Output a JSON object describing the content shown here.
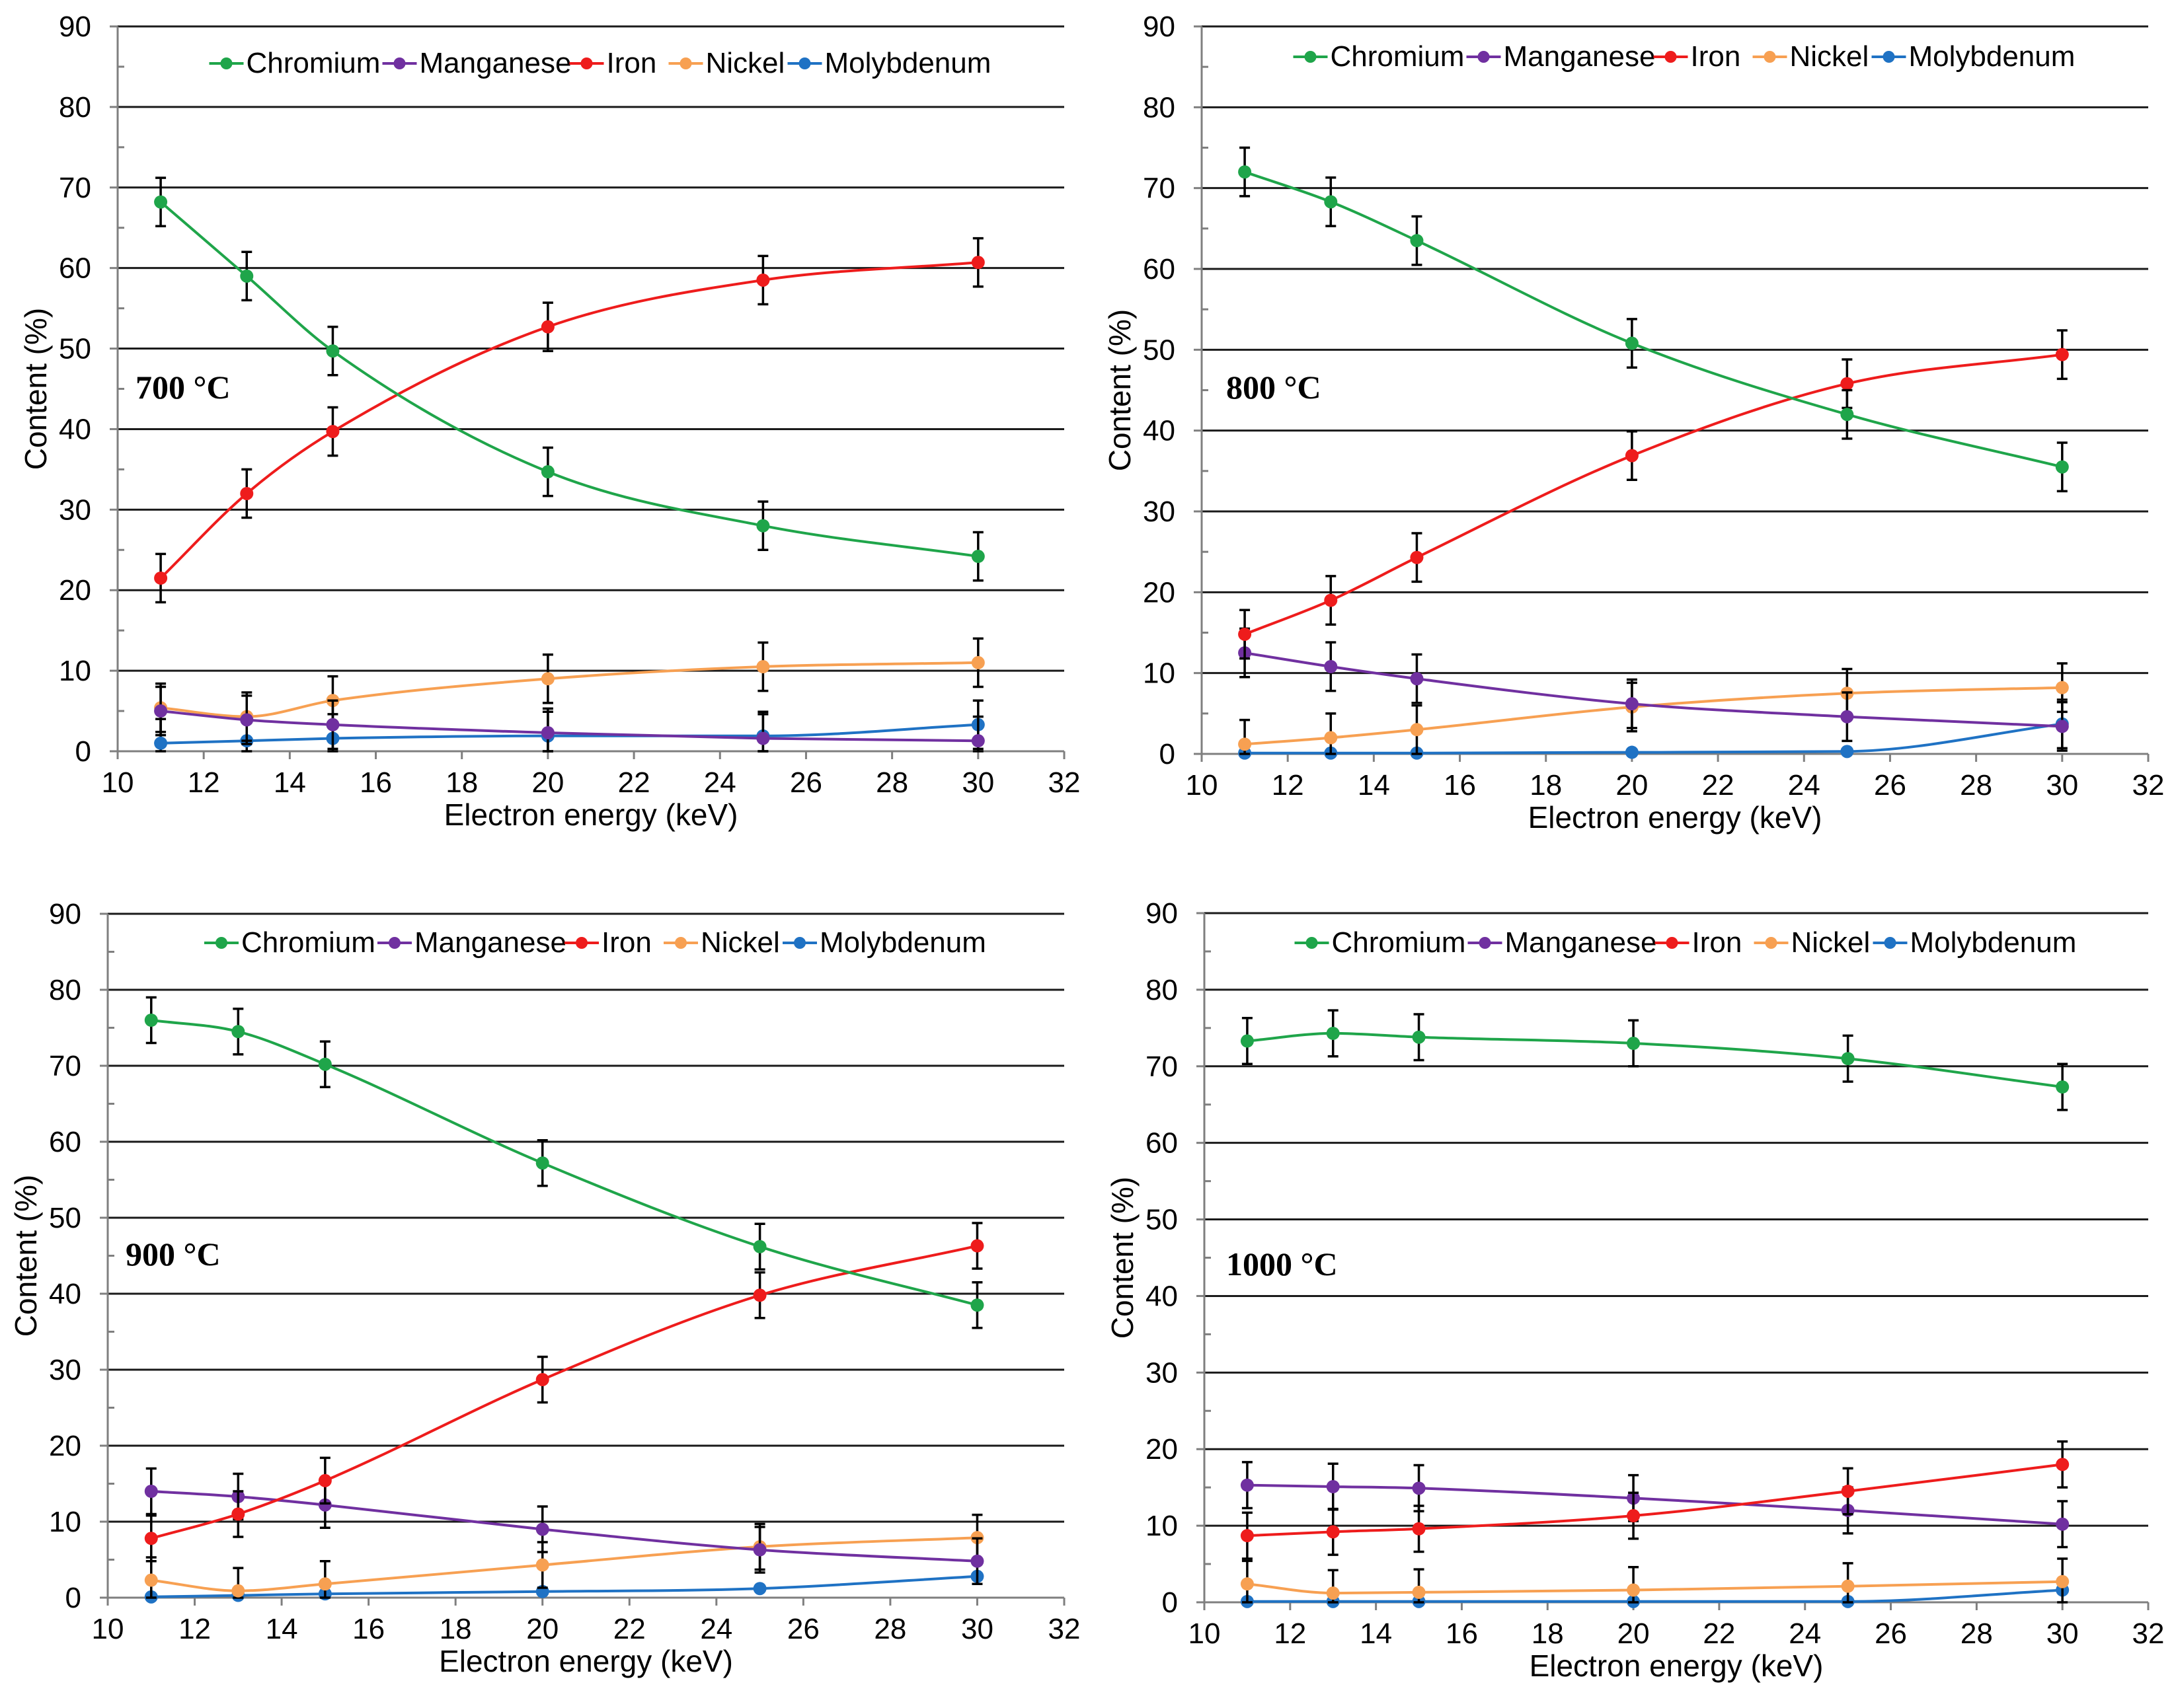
{
  "chart_data": [
    {
      "type": "line",
      "temperature_label": "700 °C",
      "xlabel": "Electron energy (keV)",
      "ylabel": "Content (%)",
      "xlim": [
        10,
        32
      ],
      "ylim": [
        0,
        90
      ],
      "x_ticks": [
        "10",
        "12",
        "14",
        "16",
        "18",
        "20",
        "22",
        "24",
        "26",
        "28",
        "30",
        "32"
      ],
      "y_ticks": [
        "0",
        "10",
        "20",
        "30",
        "40",
        "50",
        "60",
        "70",
        "80",
        "90"
      ],
      "x": [
        11,
        13,
        15,
        20,
        25,
        30
      ],
      "series": [
        {
          "name": "Chromium",
          "color": "#1fa54a",
          "values": [
            68.2,
            59.0,
            49.7,
            34.7,
            28.0,
            24.2
          ],
          "errors": [
            3,
            3,
            3,
            3,
            3,
            3
          ]
        },
        {
          "name": "Manganese",
          "color": "#7030a0",
          "values": [
            5.0,
            3.9,
            3.3,
            2.3,
            1.6,
            1.3
          ],
          "errors": [
            3,
            3,
            3,
            3,
            3,
            3
          ]
        },
        {
          "name": "Iron",
          "color": "#ee1c1c",
          "values": [
            21.5,
            32.0,
            39.7,
            52.7,
            58.5,
            60.7
          ],
          "errors": [
            3,
            3,
            3,
            3,
            3,
            3
          ]
        },
        {
          "name": "Nickel",
          "color": "#f7a052",
          "values": [
            5.4,
            4.3,
            6.3,
            9.0,
            10.5,
            11.0
          ],
          "errors": [
            3,
            3,
            3,
            3,
            3,
            3
          ]
        },
        {
          "name": "Molybdenum",
          "color": "#1f72c4",
          "values": [
            1.0,
            1.3,
            1.6,
            1.9,
            1.9,
            3.3
          ],
          "errors": [
            3,
            3,
            3,
            3,
            3,
            3
          ]
        }
      ]
    },
    {
      "type": "line",
      "temperature_label": "800 °C",
      "xlabel": "Electron energy (keV)",
      "ylabel": "Content (%)",
      "xlim": [
        10,
        32
      ],
      "ylim": [
        0,
        90
      ],
      "x_ticks": [
        "10",
        "12",
        "14",
        "16",
        "18",
        "20",
        "22",
        "24",
        "26",
        "28",
        "30",
        "32"
      ],
      "y_ticks": [
        "0",
        "10",
        "20",
        "30",
        "40",
        "50",
        "60",
        "70",
        "80",
        "90"
      ],
      "x": [
        11,
        13,
        15,
        20,
        25,
        30
      ],
      "series": [
        {
          "name": "Chromium",
          "color": "#1fa54a",
          "values": [
            72.0,
            68.3,
            63.5,
            50.8,
            42.0,
            35.5
          ],
          "errors": [
            3,
            3,
            3,
            3,
            3,
            3
          ]
        },
        {
          "name": "Manganese",
          "color": "#7030a0",
          "values": [
            12.5,
            10.8,
            9.3,
            6.2,
            4.6,
            3.4
          ],
          "errors": [
            3,
            3,
            3,
            3,
            3,
            3
          ]
        },
        {
          "name": "Iron",
          "color": "#ee1c1c",
          "values": [
            14.8,
            19.0,
            24.3,
            36.9,
            45.8,
            49.4
          ],
          "errors": [
            3,
            3,
            3,
            3,
            3,
            3
          ]
        },
        {
          "name": "Nickel",
          "color": "#f7a052",
          "values": [
            1.2,
            2.0,
            3.0,
            5.8,
            7.5,
            8.2
          ],
          "errors": [
            3,
            3,
            3,
            3,
            3,
            3
          ]
        },
        {
          "name": "Molybdenum",
          "color": "#1f72c4",
          "values": [
            0.1,
            0.1,
            0.1,
            0.2,
            0.3,
            3.7
          ],
          "errors": [
            0,
            0,
            0,
            0,
            0,
            3
          ]
        }
      ]
    },
    {
      "type": "line",
      "temperature_label": "900 °C",
      "xlabel": "Electron energy (keV)",
      "ylabel": "Content (%)",
      "xlim": [
        10,
        32
      ],
      "ylim": [
        0,
        90
      ],
      "x_ticks": [
        "10",
        "12",
        "14",
        "16",
        "18",
        "20",
        "22",
        "24",
        "26",
        "28",
        "30",
        "32"
      ],
      "y_ticks": [
        "0",
        "10",
        "20",
        "30",
        "40",
        "50",
        "60",
        "70",
        "80",
        "90"
      ],
      "x": [
        11,
        13,
        15,
        20,
        25,
        30
      ],
      "series": [
        {
          "name": "Chromium",
          "color": "#1fa54a",
          "values": [
            76.0,
            74.5,
            70.2,
            57.2,
            46.2,
            38.5
          ],
          "errors": [
            3,
            3,
            3,
            3,
            3,
            3
          ]
        },
        {
          "name": "Manganese",
          "color": "#7030a0",
          "values": [
            14.0,
            13.3,
            12.2,
            9.0,
            6.3,
            4.8
          ],
          "errors": [
            3,
            3,
            3,
            3,
            3,
            3
          ]
        },
        {
          "name": "Iron",
          "color": "#ee1c1c",
          "values": [
            7.8,
            11.0,
            15.4,
            28.7,
            39.8,
            46.3
          ],
          "errors": [
            3,
            3,
            3,
            3,
            3,
            3
          ]
        },
        {
          "name": "Nickel",
          "color": "#f7a052",
          "values": [
            2.3,
            0.9,
            1.8,
            4.3,
            6.7,
            7.9
          ],
          "errors": [
            3,
            3,
            3,
            3,
            3,
            3
          ]
        },
        {
          "name": "Molybdenum",
          "color": "#1f72c4",
          "values": [
            0.1,
            0.3,
            0.5,
            0.8,
            1.2,
            2.8
          ],
          "errors": [
            0,
            0,
            0,
            0,
            0,
            0
          ]
        }
      ]
    },
    {
      "type": "line",
      "temperature_label": "1000 °C",
      "xlabel": "Electron energy (keV)",
      "ylabel": "Content (%)",
      "xlim": [
        10,
        32
      ],
      "ylim": [
        0,
        90
      ],
      "x_ticks": [
        "10",
        "12",
        "14",
        "16",
        "18",
        "20",
        "22",
        "24",
        "26",
        "28",
        "30",
        "32"
      ],
      "y_ticks": [
        "0",
        "10",
        "20",
        "30",
        "40",
        "50",
        "60",
        "70",
        "80",
        "90"
      ],
      "x": [
        11,
        13,
        15,
        20,
        25,
        30
      ],
      "series": [
        {
          "name": "Chromium",
          "color": "#1fa54a",
          "values": [
            73.3,
            74.3,
            73.8,
            73.0,
            71.0,
            67.3
          ],
          "errors": [
            3,
            3,
            3,
            3,
            3,
            3
          ]
        },
        {
          "name": "Manganese",
          "color": "#7030a0",
          "values": [
            15.3,
            15.1,
            14.9,
            13.6,
            12.0,
            10.2
          ],
          "errors": [
            3,
            3,
            3,
            3,
            3,
            3
          ]
        },
        {
          "name": "Iron",
          "color": "#ee1c1c",
          "values": [
            8.7,
            9.2,
            9.6,
            11.3,
            14.5,
            18.0
          ],
          "errors": [
            3,
            3,
            3,
            3,
            3,
            3
          ]
        },
        {
          "name": "Nickel",
          "color": "#f7a052",
          "values": [
            2.4,
            1.2,
            1.3,
            1.6,
            2.1,
            2.7
          ],
          "errors": [
            3,
            3,
            3,
            3,
            3,
            3
          ]
        },
        {
          "name": "Molybdenum",
          "color": "#1f72c4",
          "values": [
            0.1,
            0.1,
            0.1,
            0.1,
            0.1,
            1.6
          ],
          "errors": [
            0,
            0,
            0,
            0,
            0,
            0
          ]
        }
      ]
    }
  ]
}
